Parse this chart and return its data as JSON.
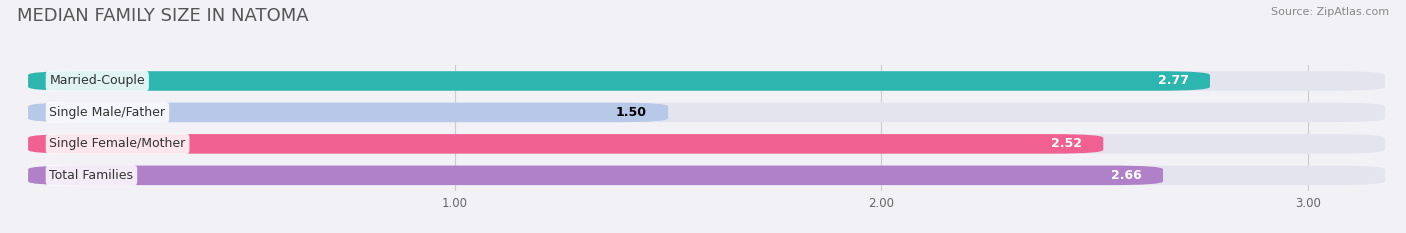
{
  "title": "MEDIAN FAMILY SIZE IN NATOMA",
  "source": "Source: ZipAtlas.com",
  "categories": [
    "Married-Couple",
    "Single Male/Father",
    "Single Female/Mother",
    "Total Families"
  ],
  "values": [
    2.77,
    1.5,
    2.52,
    2.66
  ],
  "bar_colors": [
    "#2db5b0",
    "#b8c8e8",
    "#f06090",
    "#b080c8"
  ],
  "value_colors": [
    "white",
    "black",
    "white",
    "white"
  ],
  "xlim_min": 0.0,
  "xlim_max": 3.18,
  "x_ticks": [
    1.0,
    2.0,
    3.0
  ],
  "x_tick_labels": [
    "1.00",
    "2.00",
    "3.00"
  ],
  "bar_height": 0.62,
  "bar_gap": 0.18,
  "background_color": "#f2f2f6",
  "bar_background_color": "#e4e4ee",
  "title_fontsize": 13,
  "label_fontsize": 9,
  "value_fontsize": 9,
  "source_fontsize": 8
}
